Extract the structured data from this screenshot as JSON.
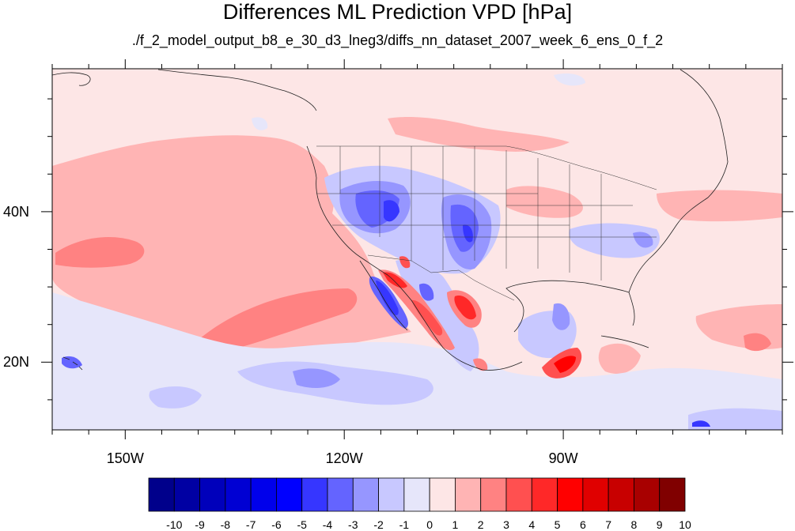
{
  "title": "Differences ML Prediction VPD [hPa]",
  "subtitle": "./f_2_model_output_b8_e_30_d3_lneg3/diffs_nn_dataset_2007_week_6_ens_0_f_2",
  "map": {
    "lon_range": [
      -160,
      -60
    ],
    "lat_range": [
      11,
      59
    ],
    "lat_labels": [
      {
        "lat": 40,
        "text": "40N"
      },
      {
        "lat": 20,
        "text": "20N"
      }
    ],
    "lon_labels": [
      {
        "lon": -150,
        "text": "150W"
      },
      {
        "lon": -120,
        "text": "120W"
      },
      {
        "lon": -90,
        "text": "90W"
      }
    ],
    "background_value_color": "#fde6e6"
  },
  "colorbar": {
    "labels": [
      "-10",
      "-9",
      "-8",
      "-7",
      "-6",
      "-5",
      "-4",
      "-3",
      "-2",
      "-1",
      "0",
      "1",
      "2",
      "3",
      "4",
      "5",
      "6",
      "7",
      "8",
      "9",
      "10"
    ],
    "colors": [
      "#00008b",
      "#0000a3",
      "#0000bb",
      "#0000d3",
      "#0000eb",
      "#0000ff",
      "#3636ff",
      "#6464ff",
      "#9696ff",
      "#c8c8ff",
      "#e6e6fa",
      "#fde6e6",
      "#ffb4b4",
      "#ff8282",
      "#ff5050",
      "#ff2828",
      "#ff0000",
      "#e00000",
      "#c80000",
      "#a80000",
      "#800000"
    ]
  }
}
